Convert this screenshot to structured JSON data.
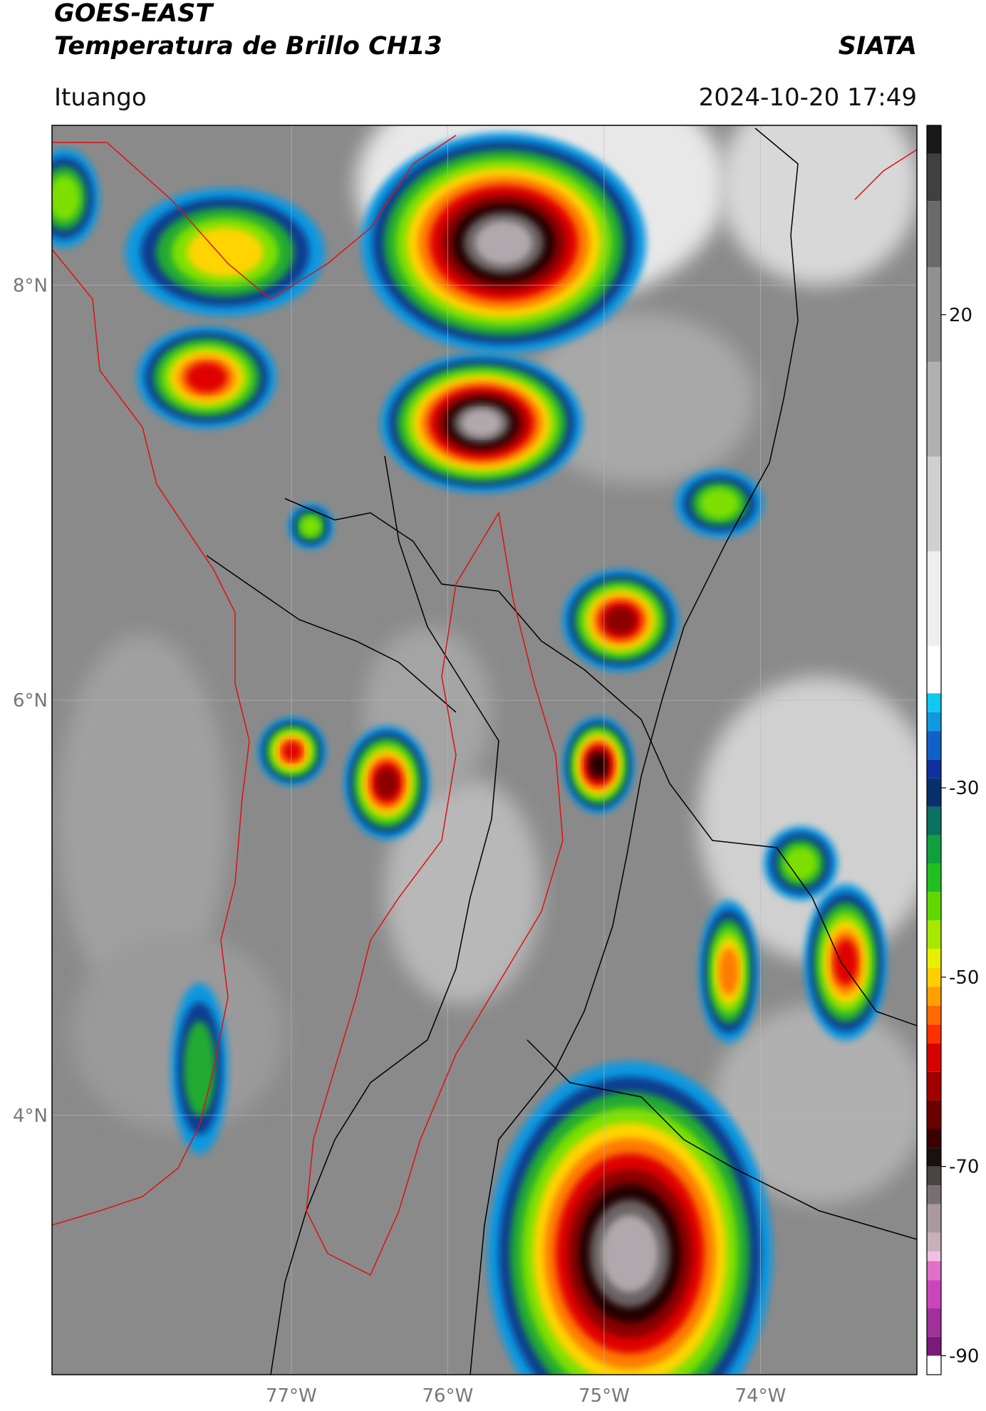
{
  "header": {
    "title": "GOES-EAST",
    "subtitle": "Temperatura de Brillo CH13",
    "source": "SIATA",
    "location": "Ituango",
    "datetime": "2024-10-20 17:49"
  },
  "map": {
    "xlim": [
      -78.53,
      -73.0
    ],
    "ylim": [
      2.75,
      8.77
    ],
    "xticks": [
      {
        "value": -77,
        "label": "77°W"
      },
      {
        "value": -76,
        "label": "76°W"
      },
      {
        "value": -75,
        "label": "75°W"
      },
      {
        "value": -74,
        "label": "74°W"
      }
    ],
    "yticks": [
      {
        "value": 8,
        "label": "8°N"
      },
      {
        "value": 6,
        "label": "6°N"
      },
      {
        "value": 4,
        "label": "4°N"
      }
    ],
    "grid": true
  },
  "colorbar": {
    "lim": [
      -92,
      40
    ],
    "ticks": [
      20,
      -30,
      -50,
      -70,
      -90
    ],
    "levels": [
      {
        "value": -92,
        "color": "#ffffff"
      },
      {
        "value": -90,
        "color": "#7a1a7a"
      },
      {
        "value": -88,
        "color": "#a0309a"
      },
      {
        "value": -85,
        "color": "#cc44bb"
      },
      {
        "value": -82,
        "color": "#e070c8"
      },
      {
        "value": -80,
        "color": "#f0c0e0"
      },
      {
        "value": -79,
        "color": "#c8b0b8"
      },
      {
        "value": -77,
        "color": "#a89aa0"
      },
      {
        "value": -74,
        "color": "#787070"
      },
      {
        "value": -72,
        "color": "#4a4444"
      },
      {
        "value": -70,
        "color": "#1a1010"
      },
      {
        "value": -68,
        "color": "#3a0000"
      },
      {
        "value": -66,
        "color": "#6a0000"
      },
      {
        "value": -63,
        "color": "#a00000"
      },
      {
        "value": -60,
        "color": "#d80000"
      },
      {
        "value": -57,
        "color": "#ff3000"
      },
      {
        "value": -55,
        "color": "#ff6a00"
      },
      {
        "value": -53,
        "color": "#ffa000"
      },
      {
        "value": -51,
        "color": "#ffd000"
      },
      {
        "value": -49,
        "color": "#e8f000"
      },
      {
        "value": -47,
        "color": "#a8e800"
      },
      {
        "value": -44,
        "color": "#60d800"
      },
      {
        "value": -41,
        "color": "#20c020"
      },
      {
        "value": -38,
        "color": "#10a040"
      },
      {
        "value": -35,
        "color": "#0a7060"
      },
      {
        "value": -32,
        "color": "#08306a"
      },
      {
        "value": -29,
        "color": "#1030a0"
      },
      {
        "value": -27,
        "color": "#1060c8"
      },
      {
        "value": -24,
        "color": "#1098e0"
      },
      {
        "value": -22,
        "color": "#10c8f0"
      },
      {
        "value": -20,
        "color": "#ffffff"
      },
      {
        "value": -15,
        "color": "#eeeeee"
      },
      {
        "value": -5,
        "color": "#d0d0d0"
      },
      {
        "value": 5,
        "color": "#b0b0b0"
      },
      {
        "value": 15,
        "color": "#909090"
      },
      {
        "value": 25,
        "color": "#6a6a6a"
      },
      {
        "value": 32,
        "color": "#404040"
      },
      {
        "value": 37,
        "color": "#181818"
      }
    ]
  }
}
